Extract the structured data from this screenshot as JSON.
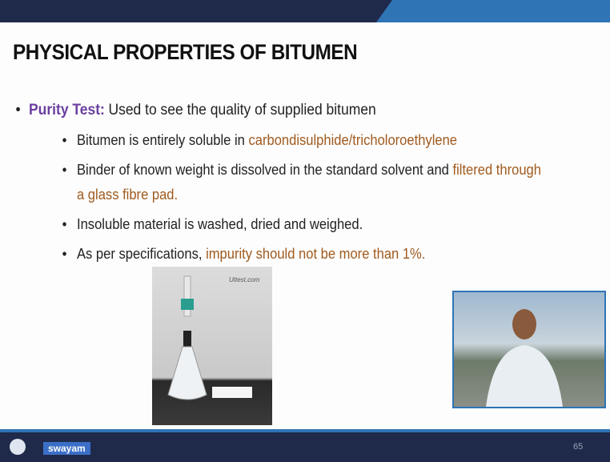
{
  "slide": {
    "title": "PHYSICAL PROPERTIES OF BITUMEN",
    "bullet": {
      "label": "Purity Test:",
      "text": "Used to see the quality of supplied bitumen"
    },
    "sub_bullets": [
      {
        "text": "Bitumen is entirely soluble in",
        "highlight": "carbondisulphide/tricholoroethylene"
      },
      {
        "text": "Binder of known weight is dissolved in the standard solvent and",
        "highlight": "filtered through a glass fibre pad."
      },
      {
        "text": "Insoluble material is washed, dried and weighed."
      },
      {
        "text": "As per specifications,",
        "highlight": "impurity should not be more than 1%."
      }
    ],
    "image_caption": "Uttest.com",
    "logo": "swayam",
    "page_number": "65"
  }
}
